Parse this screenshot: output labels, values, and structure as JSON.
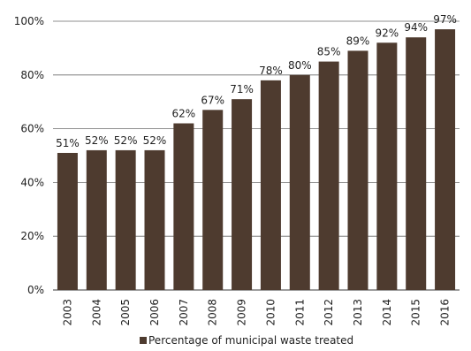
{
  "chart_data": {
    "type": "bar",
    "categories": [
      "2003",
      "2004",
      "2005",
      "2006",
      "2007",
      "2008",
      "2009",
      "2010",
      "2011",
      "2012",
      "2013",
      "2014",
      "2015",
      "2016"
    ],
    "series": [
      {
        "name": "Percentage of municipal waste treated",
        "values": [
          51,
          52,
          52,
          52,
          62,
          67,
          71,
          78,
          80,
          85,
          89,
          92,
          94,
          97
        ],
        "data_labels": [
          "51%",
          "52%",
          "52%",
          "52%",
          "62%",
          "67%",
          "71%",
          "78%",
          "80%",
          "85%",
          "89%",
          "92%",
          "94%",
          "97%"
        ]
      }
    ],
    "ylim": [
      0,
      100
    ],
    "y_ticks": [
      0,
      20,
      40,
      60,
      80,
      100
    ],
    "y_tick_labels": [
      "0%",
      "20%",
      "40%",
      "60%",
      "80%",
      "100%"
    ],
    "grid": true,
    "legend_position": "bottom",
    "colors": {
      "bar": "#4e3b2f",
      "grid": "#6a6a6a",
      "axis": "#3a3a3a"
    }
  }
}
